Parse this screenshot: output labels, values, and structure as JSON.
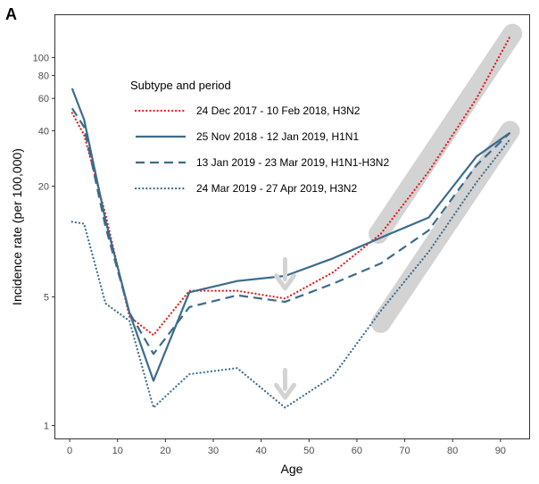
{
  "chart_data": {
    "type": "line",
    "panel_label": "A",
    "xlabel": "Age",
    "ylabel": "Incidence rate (per 100,000)",
    "xlim": [
      -3,
      96
    ],
    "ylim": [
      0.85,
      170
    ],
    "y_scale": "log",
    "x_ticks": [
      0,
      10,
      20,
      30,
      40,
      50,
      60,
      70,
      80,
      90
    ],
    "x_tick_labels": [
      "0",
      "10",
      "20",
      "30",
      "40",
      "50",
      "60",
      "70",
      "80",
      "90"
    ],
    "y_ticks": [
      1,
      5,
      20,
      40,
      60,
      80,
      100
    ],
    "y_tick_labels": [
      "1",
      "5",
      "20",
      "40",
      "60",
      "80",
      "100"
    ],
    "grid": false,
    "legend": {
      "title": "Subtype and period",
      "position": "top-left"
    },
    "series": [
      {
        "name": "24 Dec 2017 - 10 Feb 2018, H3N2",
        "color": "#e41a1c",
        "style": "dotted",
        "x": [
          0.5,
          3,
          7.5,
          12.5,
          17.5,
          25,
          35,
          45,
          55,
          65,
          75,
          85,
          92
        ],
        "y": [
          50,
          38,
          14,
          3.9,
          3.1,
          5.4,
          5.4,
          4.9,
          6.8,
          11,
          24,
          60,
          130
        ]
      },
      {
        "name": "25 Nov 2018 - 12 Jan 2019, H1N1",
        "color": "#3c6b8c",
        "style": "solid",
        "x": [
          0.5,
          3,
          7.5,
          12.5,
          17.5,
          25,
          35,
          45,
          55,
          65,
          75,
          85,
          92
        ],
        "y": [
          68,
          46,
          13,
          4.1,
          1.75,
          5.3,
          6.1,
          6.5,
          8.1,
          10.5,
          13.5,
          29,
          39
        ]
      },
      {
        "name": "13 Jan 2019 - 23 Mar 2019, H1N1-H3N2",
        "color": "#3c6b8c",
        "style": "dashed",
        "x": [
          0.5,
          3,
          7.5,
          12.5,
          17.5,
          25,
          35,
          45,
          55,
          65,
          75,
          85,
          92
        ],
        "y": [
          53,
          42,
          12,
          4.1,
          2.45,
          4.4,
          5.1,
          4.7,
          5.9,
          7.6,
          11.5,
          26,
          39
        ]
      },
      {
        "name": "24 Mar 2019 - 27 Apr 2019, H3N2",
        "color": "#3c6b8c",
        "style": "dotted",
        "x": [
          0.5,
          3,
          7.5,
          12.5,
          17.5,
          25,
          35,
          45,
          55,
          65,
          75,
          85,
          92
        ],
        "y": [
          12.8,
          12.5,
          4.6,
          3.7,
          1.25,
          1.9,
          2.05,
          1.25,
          1.85,
          4.2,
          8.8,
          21,
          36
        ]
      }
    ],
    "annotations": {
      "highlight_bands": [
        {
          "x": [
            64.5,
            92.5
          ],
          "y": [
            11,
            135
          ]
        },
        {
          "x": [
            65,
            92
          ],
          "y": [
            3.6,
            40
          ]
        }
      ],
      "arrows": [
        {
          "x": 45,
          "y_from": 8.0,
          "y_to": 5.7
        },
        {
          "x": 45,
          "y_from": 2.0,
          "y_to": 1.45
        }
      ],
      "highlight_color": "#d3d3d3"
    }
  }
}
